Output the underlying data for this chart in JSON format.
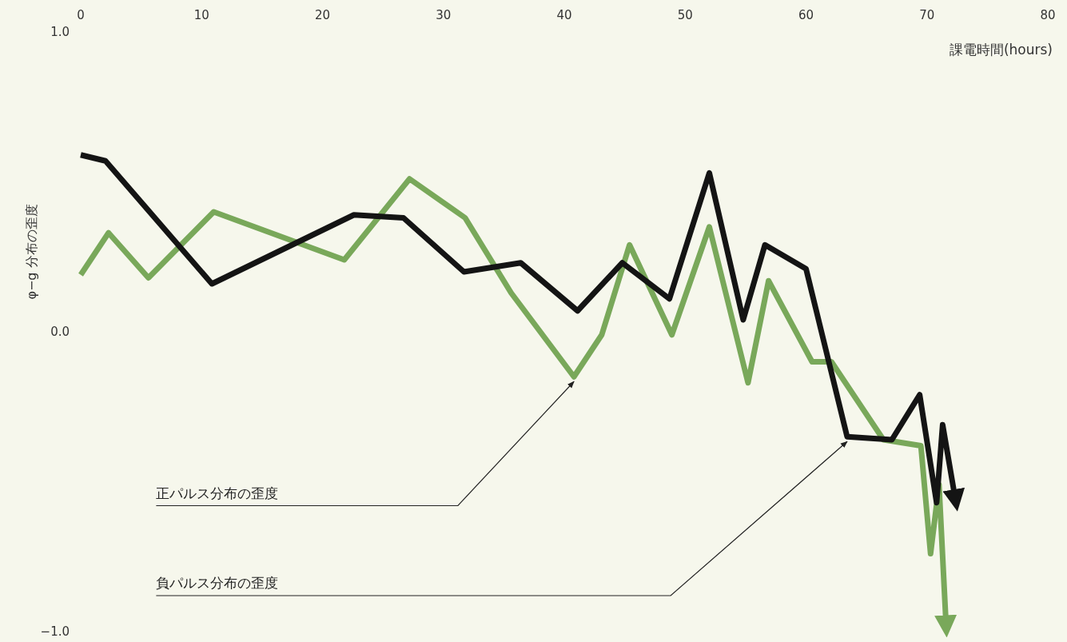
{
  "chart_data": {
    "type": "line",
    "xlabel": "課電時間(hours)",
    "ylabel": "φ−g 分布の歪度",
    "xlim": [
      0,
      80
    ],
    "xticks": [
      0,
      10,
      20,
      30,
      40,
      50,
      60,
      70,
      80
    ],
    "ylim": [
      -1,
      1
    ],
    "yticks": [
      {
        "value": 1,
        "label": "1.0"
      },
      {
        "value": 0,
        "label": "0.0"
      },
      {
        "value": -1,
        "label": "−1.0"
      }
    ],
    "grid": false,
    "marker": "none",
    "line_style": "solid",
    "series": [
      {
        "color": "#79a85a",
        "x": [
          0,
          2.3,
          5.6,
          11.0,
          21.8,
          27.2,
          31.8,
          35.6,
          40.8,
          43.1,
          45.4,
          48.9,
          52.0,
          55.2,
          56.9,
          60.5,
          62.1,
          66.4,
          69.5,
          70.3,
          71.0,
          71.6
        ],
        "values": [
          0.19,
          0.33,
          0.18,
          0.4,
          0.24,
          0.51,
          0.38,
          0.13,
          -0.15,
          -0.01,
          0.29,
          -0.01,
          0.35,
          -0.17,
          0.17,
          -0.1,
          -0.1,
          -0.36,
          -0.38,
          -0.74,
          -0.51,
          -0.99
        ]
      },
      {
        "color": "#141414",
        "x": [
          0,
          2.05,
          10.85,
          22.6,
          26.7,
          31.7,
          36.4,
          41.1,
          44.8,
          48.7,
          52.0,
          54.8,
          56.6,
          60.0,
          63.4,
          67.1,
          69.4,
          70.8,
          71.3,
          72.4
        ],
        "values": [
          0.59,
          0.57,
          0.16,
          0.39,
          0.38,
          0.2,
          0.23,
          0.07,
          0.23,
          0.11,
          0.53,
          0.04,
          0.29,
          0.21,
          -0.35,
          -0.36,
          -0.21,
          -0.57,
          -0.31,
          -0.57
        ]
      }
    ],
    "annotations": [
      {
        "text": "正パルス分布の歪度",
        "x": 40.8,
        "y": -0.15
      },
      {
        "text": "負パルス分布の歪度",
        "x": 63.4,
        "y": -0.35
      }
    ]
  }
}
